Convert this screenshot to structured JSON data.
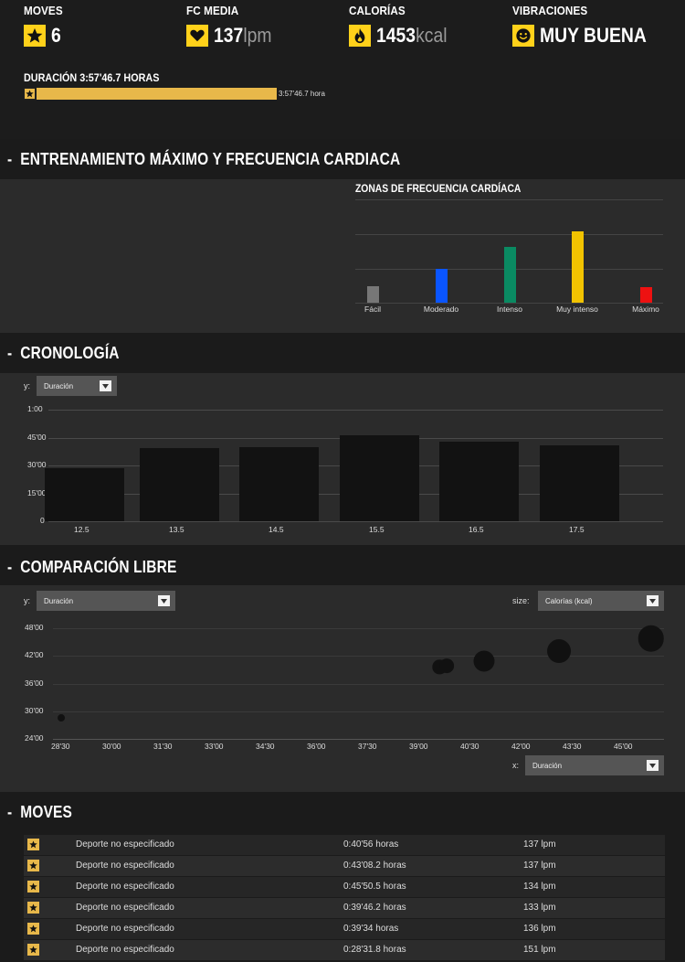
{
  "stats": {
    "moves": {
      "label": "MOVES",
      "value": "6",
      "icon": "star-icon"
    },
    "hr": {
      "label": "FC MEDIA",
      "value": "137",
      "unit": "lpm",
      "icon": "heart-icon"
    },
    "calories": {
      "label": "CALORÍAS",
      "value": "1453",
      "unit": "kcal",
      "icon": "flame-icon"
    },
    "feeling": {
      "label": "VIBRACIONES",
      "value": "MUY BUENA",
      "icon": "smiley-icon"
    },
    "duration": {
      "label": "DURACIÓN 3:57'46.7 HORAS",
      "bar_text": "3:57'46.7 hora"
    }
  },
  "colors": {
    "accent": "#ffd11a",
    "bar": "#e8b84a"
  },
  "training": {
    "title": "ENTRENAMIENTO MÁXIMO Y FRECUENCIA CARDIACA",
    "zones_title": "ZONAS DE FRECUENCIA CARDÍACA",
    "chart_data": {
      "type": "bar",
      "title": "ZONAS DE FRECUENCIA CARDÍACA",
      "categories": [
        "Fácil",
        "Moderado",
        "Intenso",
        "Muy intenso",
        "Máximo"
      ],
      "values": [
        0.16,
        0.33,
        0.54,
        0.69,
        0.15
      ],
      "colors": [
        "#777777",
        "#0a55ff",
        "#0a8a62",
        "#f2c300",
        "#ee1111"
      ],
      "ylim": [
        0,
        1
      ]
    }
  },
  "timeline": {
    "title": "CRONOLOGÍA",
    "y_label": "y:",
    "y_select": "Duración",
    "chart_data": {
      "type": "bar",
      "categories": [
        "12.5",
        "13.5",
        "14.5",
        "15.5",
        "16.5",
        "17.5"
      ],
      "values": [
        28.5,
        39.5,
        40,
        46,
        43,
        41
      ],
      "y_ticks": [
        "0",
        "15'00",
        "30'00",
        "45'00",
        "1:00"
      ],
      "ylim": [
        0,
        60
      ],
      "ylabel": "Duración"
    }
  },
  "comparison": {
    "title": "COMPARACIÓN LIBRE",
    "y_label": "y:",
    "y_select": "Duración",
    "size_label": "size:",
    "size_select": "Calorías (kcal)",
    "x_label": "x:",
    "x_select": "Duración",
    "chart_data": {
      "type": "scatter",
      "x_ticks": [
        "28'30",
        "30'00",
        "31'30",
        "33'00",
        "34'30",
        "36'00",
        "37'30",
        "39'00",
        "40'30",
        "42'00",
        "43'30",
        "45'00"
      ],
      "y_ticks": [
        "24'00",
        "30'00",
        "36'00",
        "42'00",
        "48'00"
      ],
      "xlim": [
        28.5,
        46.2
      ],
      "ylim": [
        24,
        50
      ],
      "points": [
        {
          "x": 28.5,
          "y": 28.5,
          "size": 40
        },
        {
          "x": 39.6,
          "y": 39.6,
          "size": 150
        },
        {
          "x": 39.8,
          "y": 39.8,
          "size": 160
        },
        {
          "x": 40.9,
          "y": 40.9,
          "size": 340
        },
        {
          "x": 43.1,
          "y": 43.1,
          "size": 430
        },
        {
          "x": 45.8,
          "y": 45.8,
          "size": 520
        }
      ],
      "xlabel": "Duración",
      "ylabel": "Duración"
    }
  },
  "moves": {
    "title": "MOVES",
    "rows": [
      {
        "sport": "Deporte no especificado",
        "duration": "0:40'56 horas",
        "hr": "137 lpm"
      },
      {
        "sport": "Deporte no especificado",
        "duration": "0:43'08.2 horas",
        "hr": "137 lpm"
      },
      {
        "sport": "Deporte no especificado",
        "duration": "0:45'50.5 horas",
        "hr": "134 lpm"
      },
      {
        "sport": "Deporte no especificado",
        "duration": "0:39'46.2 horas",
        "hr": "133 lpm"
      },
      {
        "sport": "Deporte no especificado",
        "duration": "0:39'34 horas",
        "hr": "136 lpm"
      },
      {
        "sport": "Deporte no especificado",
        "duration": "0:28'31.8 horas",
        "hr": "151 lpm"
      }
    ]
  }
}
